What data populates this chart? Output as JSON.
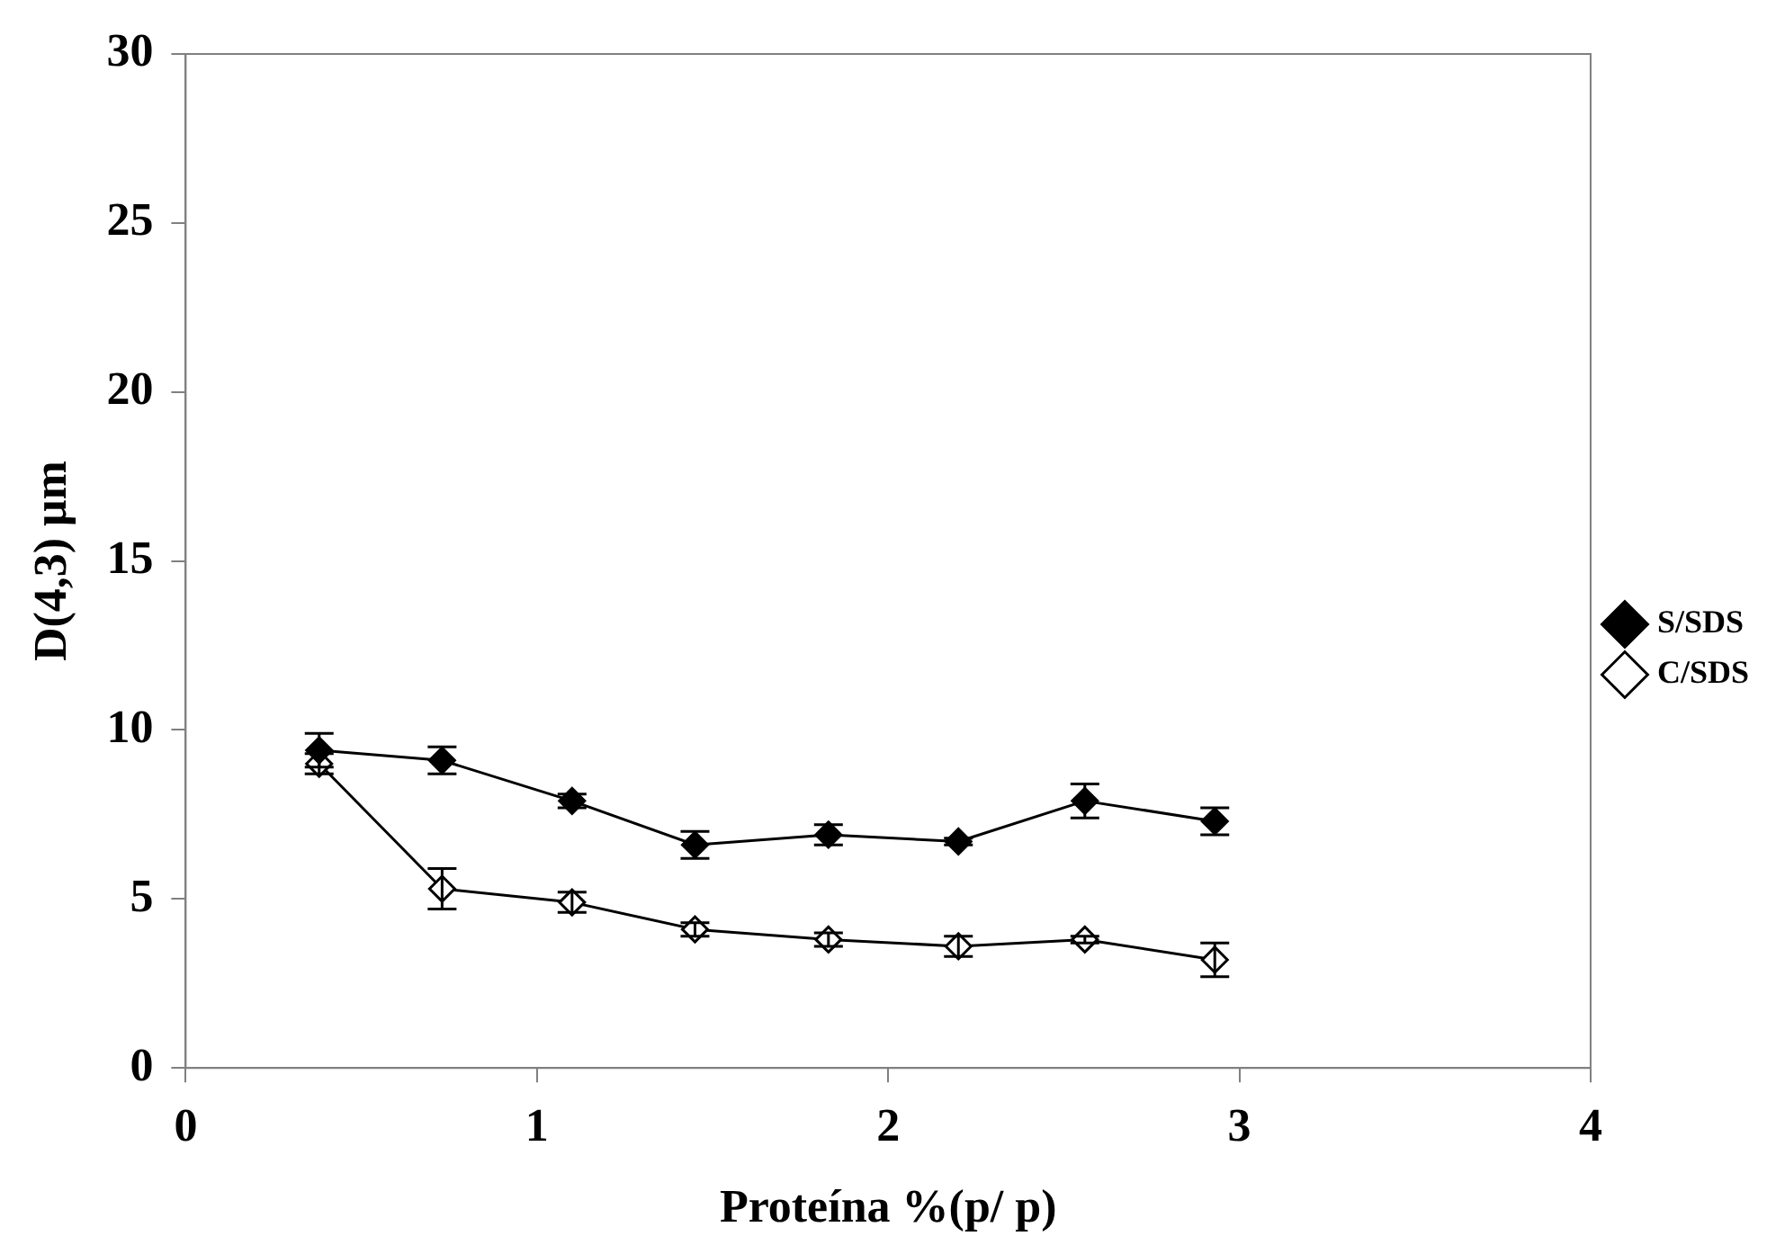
{
  "chart_data": {
    "type": "line",
    "xlabel": "Proteína %(p/ p)",
    "ylabel": "D(4,3) μm",
    "xlim": [
      0,
      4
    ],
    "xticks": [
      0,
      1,
      2,
      3,
      4
    ],
    "ylim": [
      0,
      30
    ],
    "yticks": [
      0,
      5,
      10,
      15,
      20,
      25,
      30
    ],
    "x": [
      0.38,
      0.73,
      1.1,
      1.45,
      1.83,
      2.2,
      2.56,
      2.93
    ],
    "series": [
      {
        "name": "S/SDS",
        "color": "#000000",
        "values": [
          9.4,
          9.1,
          7.9,
          6.6,
          6.9,
          6.7,
          7.9,
          7.3
        ],
        "errors": [
          0.5,
          0.4,
          0.2,
          0.4,
          0.3,
          0.1,
          0.5,
          0.4
        ]
      },
      {
        "name": "C/SDS",
        "color": "#000000",
        "values": [
          9.0,
          5.3,
          4.9,
          4.1,
          3.8,
          3.6,
          3.8,
          3.2
        ],
        "errors": [
          0.3,
          0.6,
          0.3,
          0.2,
          0.2,
          0.3,
          0.1,
          0.5
        ]
      }
    ],
    "marker": "diamond",
    "line_style": "solid",
    "grid": false,
    "legend": "right"
  }
}
